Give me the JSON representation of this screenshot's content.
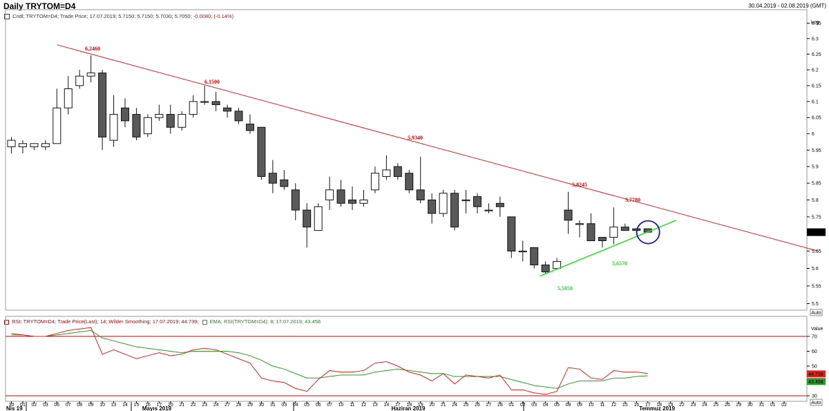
{
  "header": {
    "title": "Daily TRYTOM=D4",
    "date_range": "30.04.2019 - 02.08.2019 (GMT)"
  },
  "price_legend": {
    "text": "Cndl; TRYTOM=D4; Trade Price; 17.07.2019; 5.7150; 5.7150; 5.7030; 5.7050; ",
    "change": "-0.0080; (-0.14%)"
  },
  "rsi_legend": {
    "rsi_text": "RSI; TRYTOM=D4; Trade Price(Last); 14; Wilder Smoothing; 17.07.2019; 44.739;",
    "ema_text": "EMA; RSI(TRYTOM=D4); 8; 17.07.2019; 43.458"
  },
  "price_axis": {
    "scale_label": "Log",
    "ticks": [
      "6.35",
      "6.3",
      "6.25",
      "6.2",
      "6.15",
      "6.1",
      "6.05",
      "6",
      "5.95",
      "5.9",
      "5.85",
      "5.8",
      "5.75",
      "5.7",
      "5.65",
      "5.6",
      "5.55",
      "5.5"
    ],
    "last_price": "5.7050",
    "auto_label": "Auto"
  },
  "rsi_axis": {
    "value_label": "Value",
    "ticks": [
      "70",
      "60",
      "50",
      "40",
      "30"
    ],
    "rsi_value": "44.739",
    "ema_value": "43.458",
    "auto_label": "Auto"
  },
  "x_axis": {
    "day_labels": [
      "30",
      "01",
      "02",
      "03",
      "06",
      "07",
      "08",
      "09",
      "10",
      "13",
      "14",
      "15",
      "16",
      "17",
      "20",
      "21",
      "22",
      "23",
      "24",
      "27",
      "28",
      "29",
      "30",
      "31",
      "03",
      "04",
      "05",
      "06",
      "07",
      "10",
      "11",
      "12",
      "13",
      "14",
      "17",
      "18",
      "19",
      "20",
      "21",
      "24",
      "25",
      "26",
      "27",
      "28",
      "01",
      "02",
      "03",
      "04",
      "05",
      "08",
      "09",
      "10",
      "11",
      "12",
      "15",
      "16",
      "17",
      "18",
      "19",
      "22",
      "23",
      "24",
      "25",
      "26",
      "29",
      "30",
      "31",
      "01",
      "02"
    ],
    "month_labels": [
      "Nis 19",
      "Mayıs 2019",
      "Haziran 2019",
      "Temmuz 2019"
    ]
  },
  "annotations": {
    "resistance_highs": [
      "6,2460",
      "6,1500",
      "5,9340",
      "5,8245",
      "5,7780"
    ],
    "support_lows": [
      "5,5850",
      "5,6570"
    ]
  },
  "colors": {
    "bear_candle": "#595959",
    "bull_candle": "#ffffff",
    "resistance_line": "#e02020",
    "support_line": "#2ee62e",
    "rsi_line": "#e02020",
    "ema_line": "#2a9a2a",
    "highlight_circle": "#1a1aa0",
    "rsi_bands": "#cc0000"
  },
  "chart_data": [
    {
      "type": "candlestick",
      "title": "Daily TRYTOM=D4",
      "scale": "log",
      "ylim": [
        5.5,
        6.38
      ],
      "grid": false,
      "candles": [
        {
          "date": "30",
          "open": 5.96,
          "high": 5.99,
          "low": 5.94,
          "close": 5.98
        },
        {
          "date": "01",
          "open": 5.96,
          "high": 5.98,
          "low": 5.94,
          "close": 5.97
        },
        {
          "date": "02",
          "open": 5.96,
          "high": 5.97,
          "low": 5.95,
          "close": 5.97
        },
        {
          "date": "03",
          "open": 5.96,
          "high": 5.98,
          "low": 5.95,
          "close": 5.97
        },
        {
          "date": "06",
          "open": 5.97,
          "high": 6.14,
          "low": 5.97,
          "close": 6.08
        },
        {
          "date": "07",
          "open": 6.08,
          "high": 6.18,
          "low": 6.06,
          "close": 6.14
        },
        {
          "date": "08",
          "open": 6.15,
          "high": 6.2,
          "low": 6.14,
          "close": 6.18
        },
        {
          "date": "09",
          "open": 6.18,
          "high": 6.246,
          "low": 6.16,
          "close": 6.19
        },
        {
          "date": "10",
          "open": 6.19,
          "high": 6.2,
          "low": 5.95,
          "close": 5.99
        },
        {
          "date": "13",
          "open": 5.98,
          "high": 6.12,
          "low": 5.96,
          "close": 6.06
        },
        {
          "date": "14",
          "open": 6.08,
          "high": 6.11,
          "low": 6.02,
          "close": 6.04
        },
        {
          "date": "15",
          "open": 6.06,
          "high": 6.08,
          "low": 5.98,
          "close": 5.99
        },
        {
          "date": "16",
          "open": 6.0,
          "high": 6.06,
          "low": 5.99,
          "close": 6.05
        },
        {
          "date": "17",
          "open": 6.05,
          "high": 6.09,
          "low": 6.04,
          "close": 6.06
        },
        {
          "date": "20",
          "open": 6.06,
          "high": 6.09,
          "low": 6.0,
          "close": 6.02
        },
        {
          "date": "21",
          "open": 6.02,
          "high": 6.07,
          "low": 6.01,
          "close": 6.06
        },
        {
          "date": "22",
          "open": 6.06,
          "high": 6.12,
          "low": 6.05,
          "close": 6.1
        },
        {
          "date": "23",
          "open": 6.1,
          "high": 6.15,
          "low": 6.09,
          "close": 6.1
        },
        {
          "date": "24",
          "open": 6.1,
          "high": 6.13,
          "low": 6.07,
          "close": 6.09
        },
        {
          "date": "27",
          "open": 6.08,
          "high": 6.09,
          "low": 6.05,
          "close": 6.07
        },
        {
          "date": "28",
          "open": 6.07,
          "high": 6.08,
          "low": 6.03,
          "close": 6.04
        },
        {
          "date": "29",
          "open": 6.03,
          "high": 6.06,
          "low": 6.0,
          "close": 6.01
        },
        {
          "date": "30",
          "open": 6.02,
          "high": 6.02,
          "low": 5.86,
          "close": 5.87
        },
        {
          "date": "31",
          "open": 5.88,
          "high": 5.92,
          "low": 5.82,
          "close": 5.85
        },
        {
          "date": "03",
          "open": 5.86,
          "high": 5.89,
          "low": 5.83,
          "close": 5.84
        },
        {
          "date": "04",
          "open": 5.83,
          "high": 5.85,
          "low": 5.74,
          "close": 5.77
        },
        {
          "date": "05",
          "open": 5.77,
          "high": 5.79,
          "low": 5.66,
          "close": 5.72
        },
        {
          "date": "06",
          "open": 5.71,
          "high": 5.79,
          "low": 5.71,
          "close": 5.78
        },
        {
          "date": "07",
          "open": 5.8,
          "high": 5.87,
          "low": 5.77,
          "close": 5.83
        },
        {
          "date": "10",
          "open": 5.83,
          "high": 5.86,
          "low": 5.78,
          "close": 5.79
        },
        {
          "date": "11",
          "open": 5.8,
          "high": 5.84,
          "low": 5.77,
          "close": 5.79
        },
        {
          "date": "12",
          "open": 5.79,
          "high": 5.83,
          "low": 5.78,
          "close": 5.8
        },
        {
          "date": "13",
          "open": 5.83,
          "high": 5.9,
          "low": 5.82,
          "close": 5.88
        },
        {
          "date": "14",
          "open": 5.87,
          "high": 5.934,
          "low": 5.86,
          "close": 5.89
        },
        {
          "date": "17",
          "open": 5.9,
          "high": 5.91,
          "low": 5.86,
          "close": 5.87
        },
        {
          "date": "18",
          "open": 5.88,
          "high": 5.89,
          "low": 5.82,
          "close": 5.83
        },
        {
          "date": "19",
          "open": 5.83,
          "high": 5.93,
          "low": 5.79,
          "close": 5.8
        },
        {
          "date": "20",
          "open": 5.8,
          "high": 5.82,
          "low": 5.73,
          "close": 5.76
        },
        {
          "date": "21",
          "open": 5.76,
          "high": 5.83,
          "low": 5.75,
          "close": 5.82
        },
        {
          "date": "24",
          "open": 5.82,
          "high": 5.83,
          "low": 5.71,
          "close": 5.72
        },
        {
          "date": "25",
          "open": 5.8,
          "high": 5.83,
          "low": 5.76,
          "close": 5.8
        },
        {
          "date": "26",
          "open": 5.81,
          "high": 5.82,
          "low": 5.76,
          "close": 5.78
        },
        {
          "date": "27",
          "open": 5.77,
          "high": 5.79,
          "low": 5.76,
          "close": 5.77
        },
        {
          "date": "28",
          "open": 5.79,
          "high": 5.81,
          "low": 5.75,
          "close": 5.78
        },
        {
          "date": "01",
          "open": 5.75,
          "high": 5.75,
          "low": 5.63,
          "close": 5.65
        },
        {
          "date": "02",
          "open": 5.65,
          "high": 5.68,
          "low": 5.62,
          "close": 5.65
        },
        {
          "date": "03",
          "open": 5.66,
          "high": 5.66,
          "low": 5.6,
          "close": 5.61
        },
        {
          "date": "04",
          "open": 5.61,
          "high": 5.62,
          "low": 5.585,
          "close": 5.59
        },
        {
          "date": "05",
          "open": 5.6,
          "high": 5.63,
          "low": 5.6,
          "close": 5.62
        },
        {
          "date": "08",
          "open": 5.77,
          "high": 5.8245,
          "low": 5.7,
          "close": 5.74
        },
        {
          "date": "09",
          "open": 5.73,
          "high": 5.74,
          "low": 5.69,
          "close": 5.73
        },
        {
          "date": "10",
          "open": 5.73,
          "high": 5.76,
          "low": 5.68,
          "close": 5.68
        },
        {
          "date": "11",
          "open": 5.69,
          "high": 5.69,
          "low": 5.66,
          "close": 5.68
        },
        {
          "date": "12",
          "open": 5.69,
          "high": 5.778,
          "low": 5.67,
          "close": 5.72
        },
        {
          "date": "15",
          "open": 5.72,
          "high": 5.73,
          "low": 5.71,
          "close": 5.71
        },
        {
          "date": "16",
          "open": 5.715,
          "high": 5.715,
          "low": 5.705,
          "close": 5.71
        },
        {
          "date": "17",
          "open": 5.715,
          "high": 5.715,
          "low": 5.703,
          "close": 5.705
        }
      ],
      "annotations": [
        {
          "text": "6,2460",
          "candle": "09",
          "role": "high"
        },
        {
          "text": "6,1500",
          "candle": "23",
          "role": "high"
        },
        {
          "text": "5,9340",
          "candle": "14",
          "role": "high"
        },
        {
          "text": "5,8245",
          "candle": "08",
          "role": "high"
        },
        {
          "text": "5,7780",
          "candle": "12",
          "role": "high"
        },
        {
          "text": "5,5850",
          "candle": "04",
          "role": "low"
        },
        {
          "text": "5,6570",
          "candle": "11",
          "role": "low"
        }
      ],
      "trendlines": [
        {
          "name": "resistance",
          "from": {
            "candle_index": 4,
            "value": 6.28
          },
          "to": {
            "candle_index": 71,
            "value": 5.65
          }
        },
        {
          "name": "support",
          "from": {
            "candle_index": 46.5,
            "value": 5.578
          },
          "to": {
            "candle_index": 58.5,
            "value": 5.74
          }
        }
      ],
      "last_value": 5.705
    },
    {
      "type": "line",
      "title": "RSI",
      "ylim": [
        25,
        78
      ],
      "bands": [
        70,
        30
      ],
      "series": [
        {
          "name": "RSI",
          "values": [
            72,
            71,
            70,
            70,
            72,
            74,
            75,
            76,
            58,
            61,
            58,
            55,
            57,
            59,
            57,
            58,
            61,
            62,
            61,
            58,
            55,
            52,
            42,
            40,
            39,
            35,
            33,
            41,
            47,
            46,
            46,
            47,
            52,
            53,
            50,
            46,
            44,
            40,
            45,
            38,
            44,
            43,
            42,
            44,
            34,
            34,
            32,
            31,
            33,
            49,
            48,
            42,
            41,
            47,
            46,
            46,
            45
          ]
        },
        {
          "name": "EMA",
          "values": [
            71,
            71,
            70,
            70,
            71,
            72,
            73,
            74,
            69,
            67,
            65,
            63,
            62,
            61,
            60,
            59,
            60,
            60,
            60,
            60,
            59,
            57,
            54,
            50,
            48,
            45,
            42,
            42,
            43,
            44,
            44,
            44,
            46,
            47,
            48,
            47,
            46,
            45,
            45,
            43,
            43,
            43,
            43,
            43,
            41,
            39,
            37,
            36,
            35,
            38,
            40,
            40,
            40,
            42,
            42,
            43,
            43.5
          ]
        }
      ]
    }
  ]
}
